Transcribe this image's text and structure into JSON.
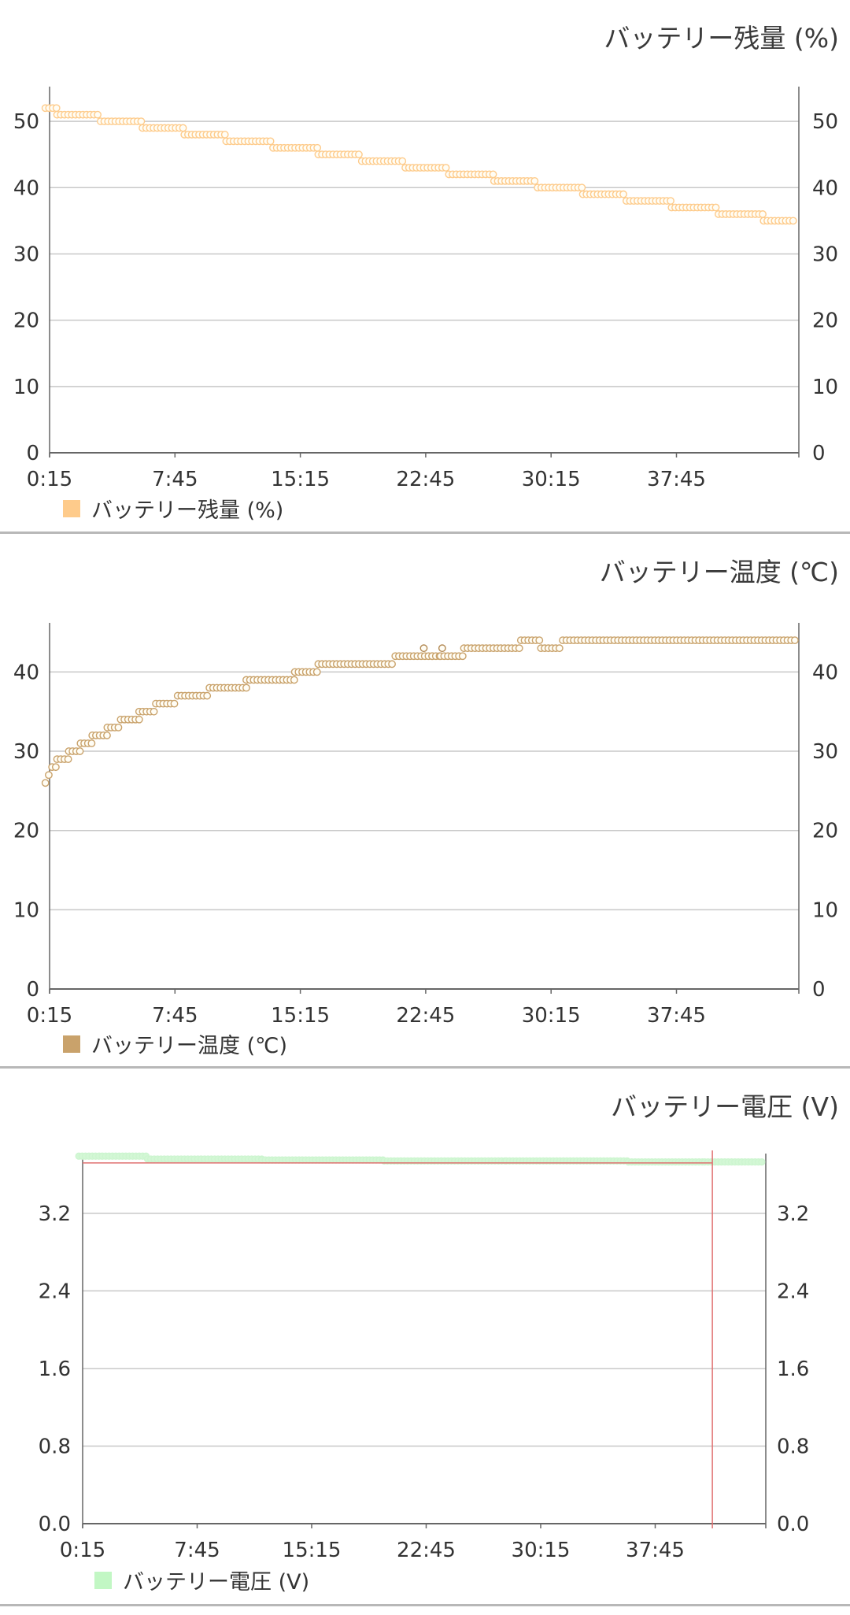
{
  "chart_data": [
    {
      "type": "scatter",
      "title": "バッテリー残量 (%)",
      "legend": "バッテリー残量 (%)",
      "legend_placement": "bottom-left",
      "color": "#fecb8b",
      "grid": true,
      "xlim": [
        0.25,
        45.0
      ],
      "ylim": [
        0,
        55
      ],
      "x_tick_labels": [
        "0:15",
        "7:45",
        "15:15",
        "22:45",
        "30:15",
        "37:45"
      ],
      "y_ticks": [
        0,
        10,
        20,
        30,
        40,
        50
      ],
      "y_tick_labels": [
        "0",
        "10",
        "20",
        "30",
        "40",
        "50"
      ],
      "steps": [
        {
          "from": 0.0,
          "to": 0.7,
          "value": 52
        },
        {
          "from": 0.7,
          "to": 3.3,
          "value": 51
        },
        {
          "from": 3.3,
          "to": 5.8,
          "value": 50
        },
        {
          "from": 5.8,
          "to": 8.3,
          "value": 49
        },
        {
          "from": 8.3,
          "to": 10.8,
          "value": 48
        },
        {
          "from": 10.8,
          "to": 13.6,
          "value": 47
        },
        {
          "from": 13.6,
          "to": 16.3,
          "value": 46
        },
        {
          "from": 16.3,
          "to": 18.9,
          "value": 45
        },
        {
          "from": 18.9,
          "to": 21.5,
          "value": 44
        },
        {
          "from": 21.5,
          "to": 24.1,
          "value": 43
        },
        {
          "from": 24.1,
          "to": 26.8,
          "value": 42
        },
        {
          "from": 26.8,
          "to": 29.4,
          "value": 41
        },
        {
          "from": 29.4,
          "to": 32.1,
          "value": 40
        },
        {
          "from": 32.1,
          "to": 34.7,
          "value": 39
        },
        {
          "from": 34.7,
          "to": 37.4,
          "value": 38
        },
        {
          "from": 37.4,
          "to": 40.2,
          "value": 37
        },
        {
          "from": 40.2,
          "to": 42.9,
          "value": 36
        },
        {
          "from": 42.9,
          "to": 44.8,
          "value": 35
        }
      ]
    },
    {
      "type": "scatter",
      "title": "バッテリー温度 (℃)",
      "legend": "バッテリー温度 (℃)",
      "legend_placement": "bottom-left",
      "color": "#c9a26b",
      "grid": true,
      "xlim": [
        0.25,
        45.0
      ],
      "ylim": [
        0,
        46
      ],
      "x_tick_labels": [
        "0:15",
        "7:45",
        "15:15",
        "22:45",
        "30:15",
        "37:45"
      ],
      "y_ticks": [
        0,
        10,
        20,
        30,
        40
      ],
      "y_tick_labels": [
        "0",
        "10",
        "20",
        "30",
        "40"
      ],
      "steps": [
        {
          "from": 0.0,
          "to": 0.2,
          "value": 26
        },
        {
          "from": 0.2,
          "to": 0.4,
          "value": 27
        },
        {
          "from": 0.4,
          "to": 0.7,
          "value": 28
        },
        {
          "from": 0.7,
          "to": 1.4,
          "value": 29
        },
        {
          "from": 1.4,
          "to": 2.1,
          "value": 30
        },
        {
          "from": 2.1,
          "to": 2.8,
          "value": 31
        },
        {
          "from": 2.8,
          "to": 3.7,
          "value": 32
        },
        {
          "from": 3.7,
          "to": 4.5,
          "value": 33
        },
        {
          "from": 4.5,
          "to": 5.6,
          "value": 34
        },
        {
          "from": 5.6,
          "to": 6.6,
          "value": 35
        },
        {
          "from": 6.6,
          "to": 7.9,
          "value": 36
        },
        {
          "from": 7.9,
          "to": 9.8,
          "value": 37
        },
        {
          "from": 9.8,
          "to": 12.0,
          "value": 38
        },
        {
          "from": 12.0,
          "to": 14.9,
          "value": 39
        },
        {
          "from": 14.9,
          "to": 16.3,
          "value": 40
        },
        {
          "from": 16.3,
          "to": 20.9,
          "value": 41
        },
        {
          "from": 20.9,
          "to": 23.1,
          "value": 42
        },
        {
          "from": 23.1,
          "to": 23.6,
          "value": 42
        },
        {
          "from": 23.6,
          "to": 25.0,
          "value": 42
        },
        {
          "from": 25.0,
          "to": 28.4,
          "value": 43
        },
        {
          "from": 28.4,
          "to": 29.6,
          "value": 44
        },
        {
          "from": 29.6,
          "to": 30.9,
          "value": 43
        },
        {
          "from": 30.9,
          "to": 44.9,
          "value": 44
        }
      ],
      "extra_points": [
        [
          22.6,
          43
        ],
        [
          23.7,
          43
        ]
      ]
    },
    {
      "type": "scatter",
      "title": "バッテリー電圧 (V)",
      "legend": "バッテリー電圧 (V)",
      "legend_placement": "bottom-left",
      "color": "#c2f7c4",
      "marker_color": "#d3f7d5",
      "marker_stroke": "#ccf5cf",
      "min_line_color": "#e07070",
      "grid": true,
      "xlim": [
        0.25,
        45.0
      ],
      "ylim": [
        0.0,
        3.8
      ],
      "x_tick_labels": [
        "0:15",
        "7:45",
        "15:15",
        "22:45",
        "30:15",
        "37:45"
      ],
      "y_ticks": [
        0.0,
        0.8,
        1.6,
        2.4,
        3.2
      ],
      "y_tick_labels": [
        "0.0",
        "0.8",
        "1.6",
        "2.4",
        "3.2"
      ],
      "voltage_segments": [
        {
          "from": 0.0,
          "to": 4.5,
          "value": 3.79
        },
        {
          "from": 4.5,
          "to": 12.0,
          "value": 3.76
        },
        {
          "from": 12.0,
          "to": 20.0,
          "value": 3.75
        },
        {
          "from": 20.0,
          "to": 28.0,
          "value": 3.74
        },
        {
          "from": 28.0,
          "to": 36.0,
          "value": 3.74
        },
        {
          "from": 36.0,
          "to": 41.0,
          "value": 3.73
        },
        {
          "from": 41.0,
          "to": 44.9,
          "value": 3.73
        }
      ],
      "min_line_value": 3.72,
      "min_line_to": 41.5,
      "event_x": 41.5
    }
  ]
}
